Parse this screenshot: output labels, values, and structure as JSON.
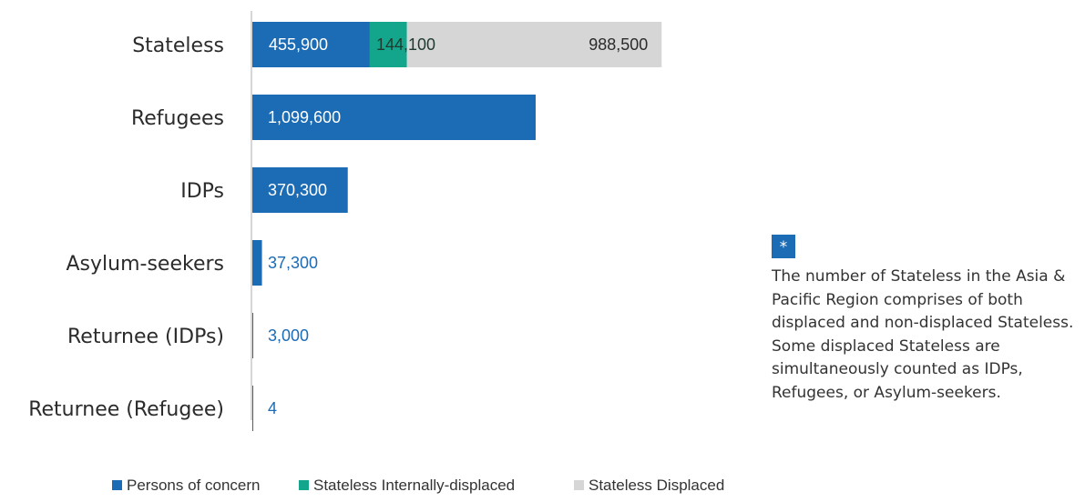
{
  "chart_data": {
    "type": "bar",
    "orientation": "horizontal",
    "stacked": true,
    "categories": [
      "Stateless",
      "Refugees",
      "IDPs",
      "Asylum-seekers",
      "Returnee (IDPs)",
      "Returnee (Refugee)"
    ],
    "series": [
      {
        "name": "Persons of concern",
        "color": "#1c6bb5",
        "values": [
          455900,
          1099600,
          370300,
          37300,
          3000,
          4
        ]
      },
      {
        "name": "Stateless Internally-displaced",
        "color": "#14a68c",
        "values": [
          144100,
          0,
          0,
          0,
          0,
          0
        ]
      },
      {
        "name": "Stateless Displaced",
        "color": "#d6d6d6",
        "values": [
          988500,
          0,
          0,
          0,
          0,
          0
        ]
      }
    ],
    "data_labels": {
      "Stateless": [
        "455,900",
        "144,100",
        "988,500"
      ],
      "Refugees": [
        "1,099,600"
      ],
      "IDPs": [
        "370,300"
      ],
      "Asylum-seekers": [
        "37,300"
      ],
      "Returnee (IDPs)": [
        "3,000"
      ],
      "Returnee (Refugee)": [
        "4"
      ]
    },
    "xlim": [
      0,
      1600000
    ],
    "grid": false,
    "legend_position": "bottom"
  },
  "note": {
    "marker": "*",
    "text": "The number of Stateless in the Asia & Pacific Region comprises of both displaced and non-displaced Stateless. Some displaced Stateless are simultaneously counted as IDPs, Refugees, or Asylum-seekers."
  }
}
